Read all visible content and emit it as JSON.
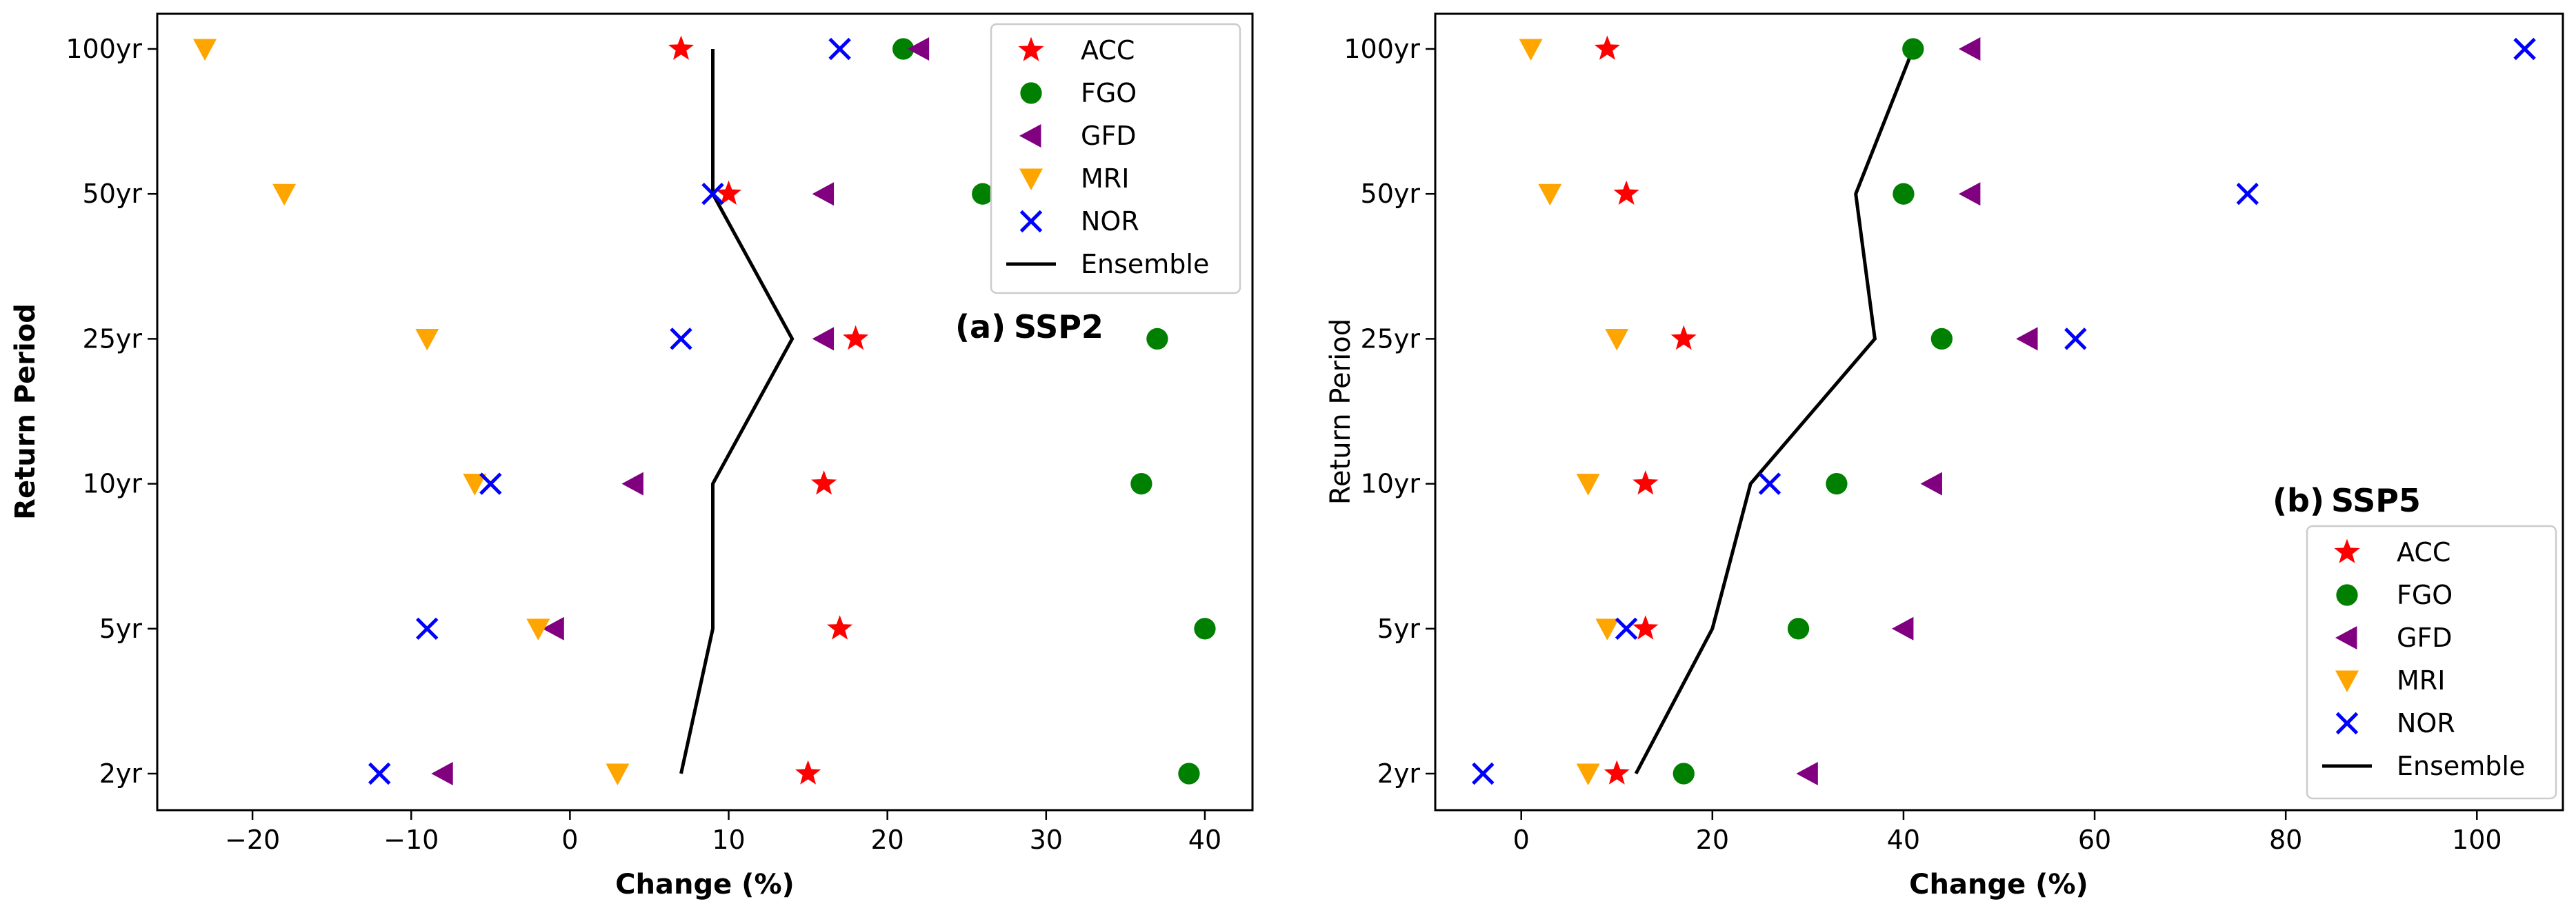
{
  "chart_data": [
    {
      "type": "scatter",
      "panel_label": "(a)",
      "scenario": "SSP2",
      "xlabel": "Change (%)",
      "ylabel": "Return Period",
      "categories": [
        "2yr",
        "5yr",
        "10yr",
        "25yr",
        "50yr",
        "100yr"
      ],
      "xlim": [
        -26,
        43
      ],
      "xticks": [
        -20,
        -10,
        0,
        10,
        20,
        30,
        40
      ],
      "xtick_labels": [
        "−20",
        "−10",
        "0",
        "10",
        "20",
        "30",
        "40"
      ],
      "legend_position": "top-right",
      "series": [
        {
          "name": "ACC",
          "marker": "star",
          "color": "#ff0000",
          "values": [
            15,
            17,
            16,
            18,
            10,
            7
          ]
        },
        {
          "name": "FGO",
          "marker": "circle",
          "color": "#008000",
          "values": [
            39,
            40,
            36,
            37,
            26,
            21
          ]
        },
        {
          "name": "GFD",
          "marker": "triangle-left",
          "color": "#800080",
          "values": [
            -8,
            -1,
            4,
            16,
            16,
            22
          ]
        },
        {
          "name": "MRI",
          "marker": "triangle-down",
          "color": "#ffa500",
          "values": [
            3,
            -2,
            -6,
            -9,
            -18,
            -23
          ]
        },
        {
          "name": "NOR",
          "marker": "x",
          "color": "#0000ff",
          "values": [
            -12,
            -9,
            -5,
            7,
            9,
            17
          ]
        },
        {
          "name": "Ensemble",
          "marker": "line",
          "color": "#000000",
          "values": [
            7,
            9,
            9,
            14,
            9,
            9
          ]
        }
      ]
    },
    {
      "type": "scatter",
      "panel_label": "(b)",
      "scenario": "SSP5",
      "xlabel": "Change (%)",
      "ylabel": "Return Period",
      "categories": [
        "2yr",
        "5yr",
        "10yr",
        "25yr",
        "50yr",
        "100yr"
      ],
      "xlim": [
        -9,
        109
      ],
      "xticks": [
        0,
        20,
        40,
        60,
        80,
        100
      ],
      "xtick_labels": [
        "0",
        "20",
        "40",
        "60",
        "80",
        "100"
      ],
      "legend_position": "lower-right",
      "series": [
        {
          "name": "ACC",
          "marker": "star",
          "color": "#ff0000",
          "values": [
            10,
            13,
            13,
            17,
            11,
            9
          ]
        },
        {
          "name": "FGO",
          "marker": "circle",
          "color": "#008000",
          "values": [
            17,
            29,
            33,
            44,
            40,
            41
          ]
        },
        {
          "name": "GFD",
          "marker": "triangle-left",
          "color": "#800080",
          "values": [
            30,
            40,
            43,
            53,
            47,
            47
          ]
        },
        {
          "name": "MRI",
          "marker": "triangle-down",
          "color": "#ffa500",
          "values": [
            7,
            9,
            7,
            10,
            3,
            1
          ]
        },
        {
          "name": "NOR",
          "marker": "x",
          "color": "#0000ff",
          "values": [
            -4,
            11,
            26,
            58,
            76,
            105
          ]
        },
        {
          "name": "Ensemble",
          "marker": "line",
          "color": "#000000",
          "values": [
            12,
            20,
            24,
            37,
            35,
            41
          ]
        }
      ]
    }
  ]
}
